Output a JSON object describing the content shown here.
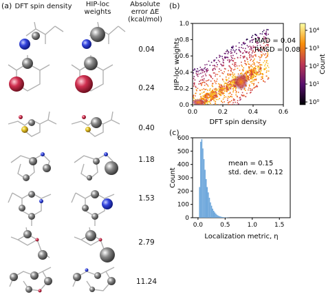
{
  "panel_a": {
    "label": "(a)",
    "headers": {
      "col1": "DFT spin density",
      "col2_line1": "HIP-loc",
      "col2_line2": "weights",
      "col3_line1": "Absolute",
      "col3_line2": "error ΔE",
      "col3_line3": "(kcal/mol)"
    },
    "errors": [
      "0.04",
      "0.24",
      "0.40",
      "1.18",
      "1.53",
      "2.79",
      "11.24"
    ]
  },
  "panel_b": {
    "label": "(b)",
    "mad": "MAD = 0.04",
    "rmsd": "RMSD = 0.08",
    "colorbar_label": "Count",
    "colorbar_ticks": [
      "10⁰",
      "10¹",
      "10²",
      "10³",
      "10⁴"
    ],
    "chart_data": {
      "type": "heatmap",
      "xlabel": "DFT spin density",
      "ylabel": "HIP-loc weights",
      "xlim": [
        0,
        0.6
      ],
      "ylim": [
        0,
        1.0
      ],
      "x_ticks": [
        "0.0",
        "0.2",
        "0.4",
        "0.6"
      ],
      "y_ticks": [
        "0.0",
        "0.2",
        "0.4",
        "0.6",
        "0.8",
        "1.0"
      ],
      "color_scale": "log"
    }
  },
  "panel_c": {
    "label": "(c)",
    "mean": "mean = 0.15",
    "std": "std. dev. = 0.12",
    "chart_data": {
      "type": "bar",
      "xlabel": "Localization metric, η",
      "ylabel": "Count",
      "xlim": [
        0,
        1.6
      ],
      "ylim": [
        0,
        600
      ],
      "x_ticks": [
        "0.0",
        "0.5",
        "1.0",
        "1.5"
      ],
      "y_ticks": [
        "0",
        "100",
        "200",
        "300",
        "400",
        "500",
        "600"
      ],
      "bin_width": 0.02,
      "bins_start": 0.02,
      "values": [
        230,
        570,
        590,
        520,
        440,
        360,
        290,
        230,
        190,
        150,
        115,
        90,
        68,
        52,
        40,
        30,
        22,
        16,
        12,
        9,
        7,
        5,
        4,
        3,
        2,
        2,
        1,
        1
      ],
      "color": "#6fa8dc"
    }
  }
}
